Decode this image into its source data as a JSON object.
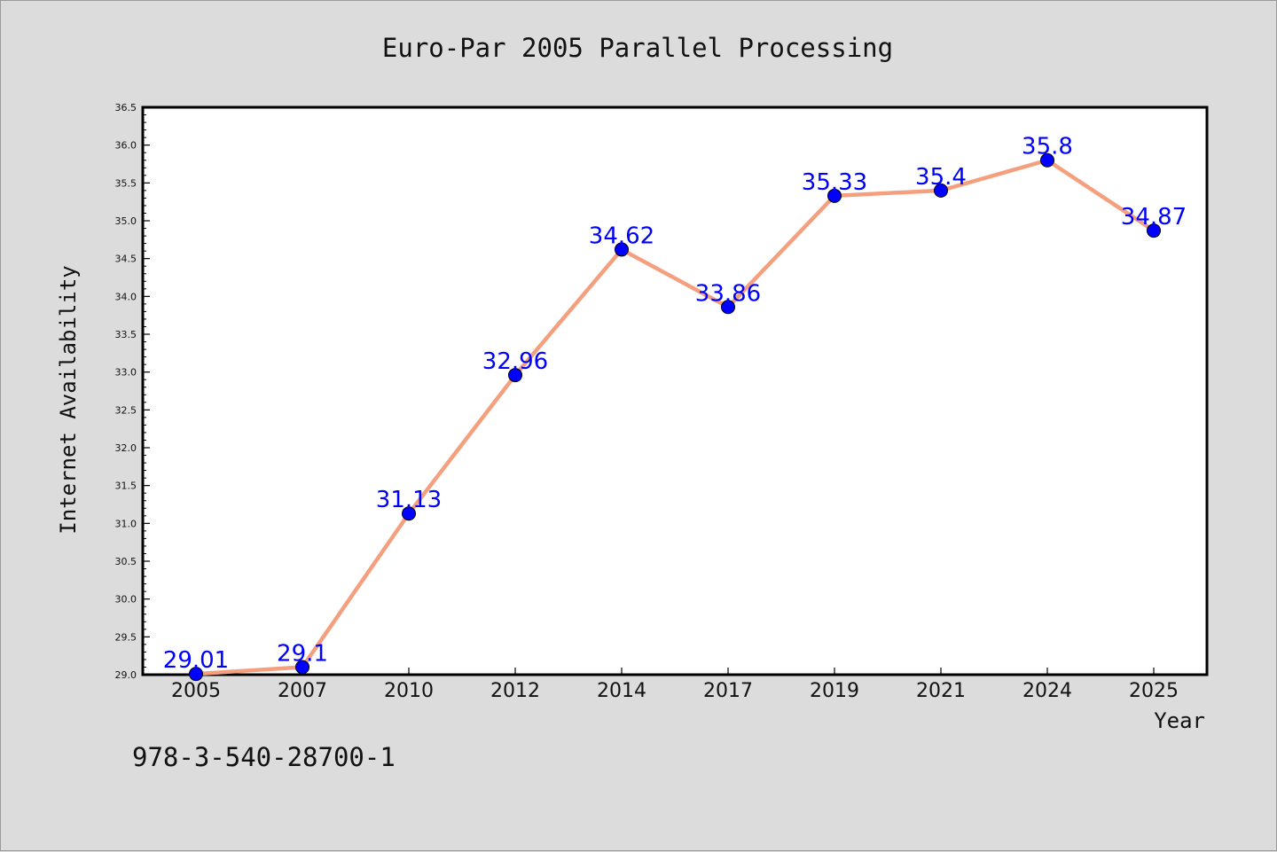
{
  "chart_data": {
    "type": "line",
    "title": "Euro-Par 2005 Parallel Processing",
    "xlabel": "Year",
    "ylabel": "Internet Availability",
    "categories": [
      "2005",
      "2007",
      "2010",
      "2012",
      "2014",
      "2017",
      "2019",
      "2021",
      "2024",
      "2025"
    ],
    "series": [
      {
        "values": [
          29.01,
          29.1,
          31.13,
          32.96,
          34.62,
          33.86,
          35.33,
          35.4,
          35.8,
          34.87
        ],
        "data_labels": [
          "29.01",
          "29.1",
          "31.13",
          "32.96",
          "34.62",
          "33.86",
          "35.33",
          "35.4",
          "35.8",
          "34.87"
        ],
        "line_color": "#f4a07f",
        "marker_color": "#0000ff",
        "label_color": "#0000ff"
      }
    ],
    "ylim": [
      29.0,
      36.5
    ],
    "yticks": [
      "29.0",
      "29.5",
      "30.0",
      "30.5",
      "31.0",
      "31.5",
      "32.0",
      "32.5",
      "33.0",
      "33.5",
      "34.0",
      "34.5",
      "35.0",
      "35.5",
      "36.0",
      "36.5"
    ],
    "grid": false,
    "legend": "none"
  },
  "footer_text": "978-3-540-28700-1",
  "colors": {
    "background": "#dcdcdc",
    "plot_background": "#ffffff",
    "frame": "#000000"
  }
}
